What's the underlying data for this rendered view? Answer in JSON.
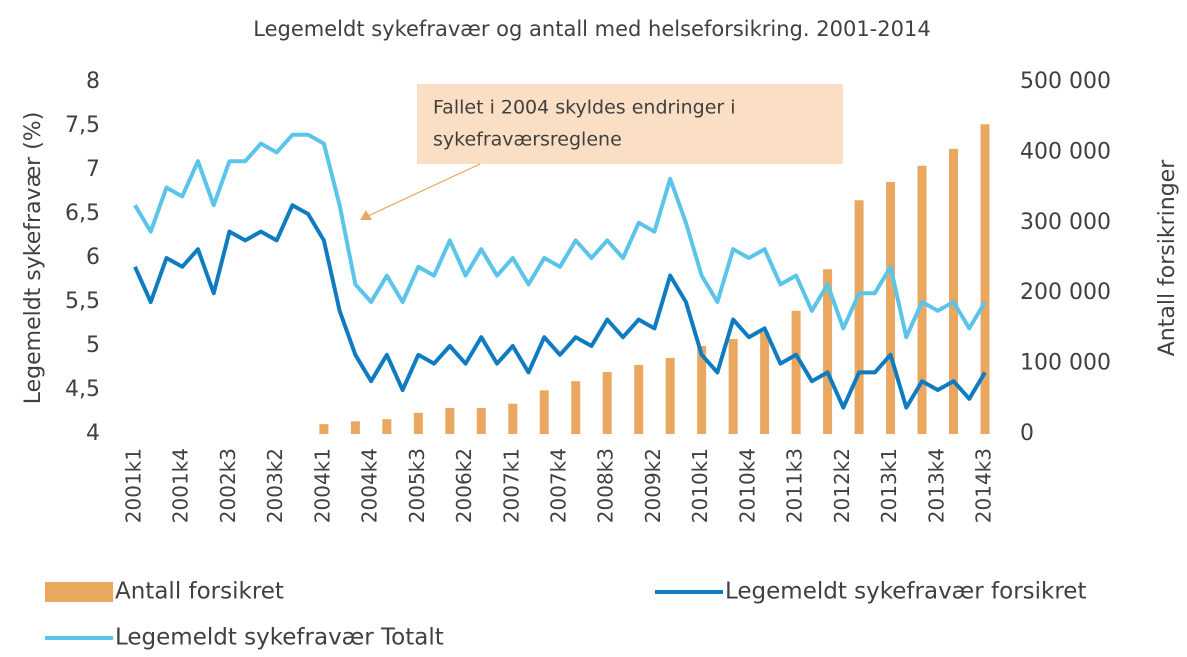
{
  "chart_data": {
    "type": "bar-line",
    "title": "Legemeldt sykefravær og antall med helseforsikring. 2001-2014",
    "y_label": "Legemeldt sykefravær (%)",
    "y2_label": "Antall forsikringer",
    "categories": [
      "2001k1",
      null,
      null,
      "2001k4",
      null,
      null,
      "2002k3",
      null,
      null,
      "2003k2",
      null,
      null,
      "2004k1",
      null,
      null,
      "2004k4",
      null,
      null,
      "2005k3",
      null,
      null,
      "2006k2",
      null,
      null,
      "2007k1",
      null,
      null,
      "2007k4",
      null,
      null,
      "2008k3",
      null,
      null,
      "2009k2",
      null,
      null,
      "2010k1",
      null,
      null,
      "2010k4",
      null,
      null,
      "2011k3",
      null,
      null,
      "2012k2",
      null,
      null,
      "2013k1",
      null,
      null,
      "2013k4",
      null,
      null,
      "2014k3"
    ],
    "series": [
      {
        "name": "Antall forsikret",
        "type": "bar",
        "axis": "y2",
        "color": "#e9a760",
        "values": [
          null,
          null,
          null,
          null,
          null,
          null,
          null,
          null,
          null,
          null,
          null,
          null,
          14000,
          null,
          18000,
          null,
          21000,
          null,
          30000,
          null,
          37000,
          null,
          37000,
          null,
          43000,
          null,
          62000,
          null,
          75000,
          null,
          88000,
          null,
          98000,
          null,
          108000,
          null,
          125000,
          null,
          135000,
          null,
          145000,
          null,
          175000,
          null,
          234000,
          null,
          332000,
          null,
          358000,
          null,
          381000,
          null,
          405000,
          null,
          440000
        ]
      },
      {
        "name": "Legemeldt sykefravær forsikret",
        "type": "line",
        "color": "#0f7bc0",
        "values": [
          5.9,
          5.5,
          6.0,
          5.9,
          6.1,
          5.6,
          6.3,
          6.2,
          6.3,
          6.2,
          6.6,
          6.5,
          6.2,
          5.4,
          4.9,
          4.6,
          4.9,
          4.5,
          4.9,
          4.8,
          5.0,
          4.8,
          5.1,
          4.8,
          5.0,
          4.7,
          5.1,
          4.9,
          5.1,
          5.0,
          5.3,
          5.1,
          5.3,
          5.2,
          5.8,
          5.5,
          4.9,
          4.7,
          5.3,
          5.1,
          5.2,
          4.8,
          4.9,
          4.6,
          4.7,
          4.3,
          4.7,
          4.7,
          4.9,
          4.3,
          4.6,
          4.5,
          4.6,
          4.4,
          4.7
        ]
      },
      {
        "name": "Legemeldt sykefravær Totalt",
        "type": "line",
        "color": "#5bc4ea",
        "values": [
          6.6,
          6.3,
          6.8,
          6.7,
          7.1,
          6.6,
          7.1,
          7.1,
          7.3,
          7.2,
          7.4,
          7.4,
          7.3,
          6.6,
          5.7,
          5.5,
          5.8,
          5.5,
          5.9,
          5.8,
          6.2,
          5.8,
          6.1,
          5.8,
          6.0,
          5.7,
          6.0,
          5.9,
          6.2,
          6.0,
          6.2,
          6.0,
          6.4,
          6.3,
          6.9,
          6.4,
          5.8,
          5.5,
          6.1,
          6.0,
          6.1,
          5.7,
          5.8,
          5.4,
          5.7,
          5.2,
          5.6,
          5.6,
          5.9,
          5.1,
          5.5,
          5.4,
          5.5,
          5.2,
          5.5
        ]
      }
    ],
    "ylim": [
      4,
      8
    ],
    "yticks": [
      4,
      {
        "value": 4.5,
        "label": "4,5"
      },
      5,
      {
        "value": 5.5,
        "label": "5,5"
      },
      6,
      {
        "value": 6.5,
        "label": "6,5"
      },
      7,
      {
        "value": 7.5,
        "label": "7,5"
      },
      8
    ],
    "y2lim": [
      0,
      500000
    ],
    "y2ticks": [
      0,
      {
        "value": 100000,
        "label": "100 000"
      },
      {
        "value": 200000,
        "label": "200 000"
      },
      {
        "value": 300000,
        "label": "300 000"
      },
      {
        "value": 400000,
        "label": "400 000"
      },
      {
        "value": 500000,
        "label": "500 000"
      }
    ],
    "annotation": {
      "lines": [
        "Fallet i 2004 skyldes endringer i",
        "sykefraværsreglene"
      ]
    },
    "legend": "bottom",
    "grid": false
  }
}
